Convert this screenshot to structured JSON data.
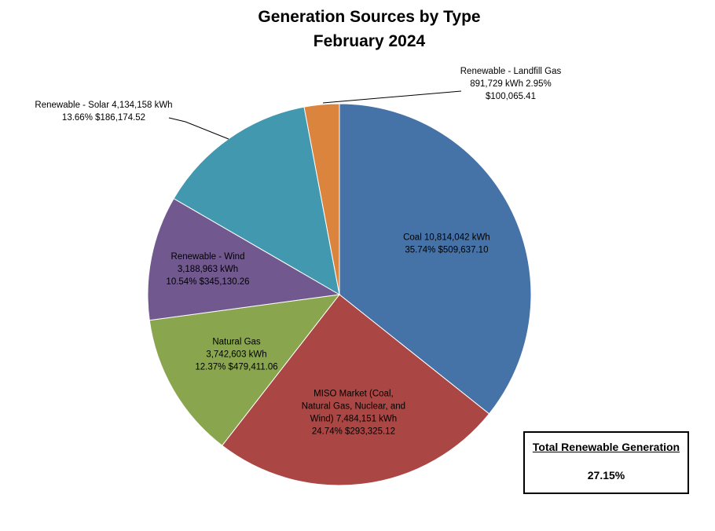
{
  "chart_data": {
    "type": "pie",
    "title": [
      "Generation Sources by Type",
      "February 2024"
    ],
    "slices": [
      {
        "name": "Coal",
        "kwh": 10814042,
        "percent": 35.74,
        "label_lines": [
          "Coal  10,814,042  kWh",
          "35.74%  $509,637.10"
        ],
        "color": "#4572A7"
      },
      {
        "name": "MISO Market (Coal, Natural Gas, Nuclear, and Wind)",
        "kwh": 7484151,
        "percent": 24.74,
        "label_lines": [
          "MISO Market (Coal,",
          "Natural Gas, Nuclear, and",
          "Wind)  7,484,151  kWh",
          "24.74%  $293,325.12"
        ],
        "color": "#AA4643"
      },
      {
        "name": "Natural Gas",
        "kwh": 3742603,
        "percent": 12.37,
        "label_lines": [
          "Natural Gas",
          "3,742,603  kWh",
          "12.37%  $479,411.06"
        ],
        "color": "#89A54E"
      },
      {
        "name": "Renewable - Wind",
        "kwh": 3188963,
        "percent": 10.54,
        "label_lines": [
          "Renewable - Wind",
          "3,188,963  kWh",
          "10.54%  $345,130.26"
        ],
        "color": "#71588F"
      },
      {
        "name": "Renewable - Solar",
        "kwh": 4134158,
        "percent": 13.66,
        "label_lines": [
          "Renewable - Solar  4,134,158   kWh",
          "13.66%  $186,174.52"
        ],
        "color": "#4198AF"
      },
      {
        "name": "Renewable - Landfill Gas",
        "kwh": 891729,
        "percent": 2.95,
        "label_lines": [
          "Renewable - Landfill Gas",
          "891,729   kWh  2.95%",
          "$100,065.41"
        ],
        "color": "#DB843D"
      }
    ]
  },
  "summary_box": {
    "title": "Total Renewable Generation",
    "value": "27.15%"
  }
}
